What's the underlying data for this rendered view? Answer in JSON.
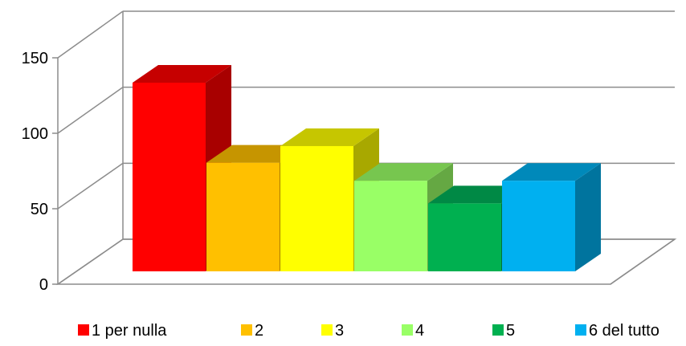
{
  "chart_data": {
    "type": "bar",
    "categories": [
      "1 per nulla",
      "2",
      "3",
      "4",
      "5",
      "6 del tutto"
    ],
    "values": [
      125,
      72,
      83,
      60,
      45,
      60
    ],
    "ylim": [
      0,
      150
    ],
    "yticks": [
      "0",
      "50",
      "100",
      "150"
    ],
    "grid": true,
    "three_d": true,
    "legend_position": "bottom",
    "colors": [
      "#ff0000",
      "#ffc000",
      "#ffff00",
      "#99ff66",
      "#00b050",
      "#00b0f0"
    ],
    "side_colors": [
      "#a80000",
      "#a87e00",
      "#a8a800",
      "#65a843",
      "#00743a",
      "#00749e"
    ],
    "top_colors": [
      "#c60000",
      "#c69500",
      "#c6c600",
      "#77c64f",
      "#008945",
      "#0089ba"
    ]
  }
}
